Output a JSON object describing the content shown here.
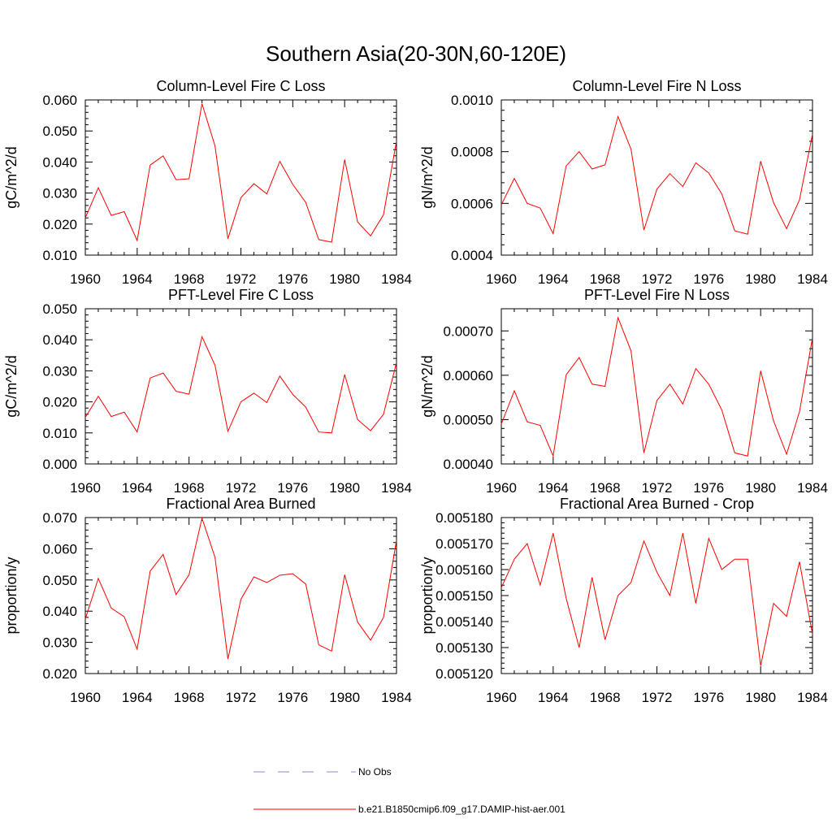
{
  "title": "Southern Asia(20-30N,60-120E)",
  "colors": {
    "series": "#ff0000",
    "obs": "#8a8ac8",
    "axis": "#000000"
  },
  "legend": {
    "obs_label": "No Obs",
    "model_label": "b.e21.B1850cmip6.f09_g17.DAMIP-hist-aer.001"
  },
  "chart_data": [
    {
      "type": "line",
      "title": "Column-Level Fire C Loss",
      "ylabel": "gC/m^2/d",
      "xlim": [
        1960,
        1984
      ],
      "ylim": [
        0.01,
        0.06
      ],
      "xticks": [
        1960,
        1964,
        1968,
        1972,
        1976,
        1980,
        1984
      ],
      "xtick_labels": [
        "1960",
        "1964",
        "1968",
        "1972",
        "1976",
        "1980",
        "1984"
      ],
      "yticks": [
        0.01,
        0.02,
        0.03,
        0.04,
        0.05,
        0.06
      ],
      "ytick_labels": [
        "0.010",
        "0.020",
        "0.030",
        "0.040",
        "0.050",
        "0.060"
      ],
      "x": [
        1960,
        1961,
        1962,
        1963,
        1964,
        1965,
        1966,
        1967,
        1968,
        1969,
        1970,
        1971,
        1972,
        1973,
        1974,
        1975,
        1976,
        1977,
        1978,
        1979,
        1980,
        1981,
        1982,
        1983,
        1984
      ],
      "y": [
        0.022,
        0.0317,
        0.0228,
        0.024,
        0.0147,
        0.039,
        0.042,
        0.0343,
        0.0346,
        0.0588,
        0.0452,
        0.0153,
        0.0285,
        0.033,
        0.0297,
        0.0402,
        0.0328,
        0.027,
        0.015,
        0.0142,
        0.0408,
        0.0207,
        0.0162,
        0.023,
        0.0468
      ]
    },
    {
      "type": "line",
      "title": "Column-Level Fire N Loss",
      "ylabel": "gN/m^2/d",
      "xlim": [
        1960,
        1984
      ],
      "ylim": [
        0.0004,
        0.001
      ],
      "xticks": [
        1960,
        1964,
        1968,
        1972,
        1976,
        1980,
        1984
      ],
      "xtick_labels": [
        "1960",
        "1964",
        "1968",
        "1972",
        "1976",
        "1980",
        "1984"
      ],
      "yticks": [
        0.0004,
        0.0006,
        0.0008,
        0.001
      ],
      "ytick_labels": [
        "0.0004",
        "0.0006",
        "0.0008",
        "0.0010"
      ],
      "x": [
        1960,
        1961,
        1962,
        1963,
        1964,
        1965,
        1966,
        1967,
        1968,
        1969,
        1970,
        1971,
        1972,
        1973,
        1974,
        1975,
        1976,
        1977,
        1978,
        1979,
        1980,
        1981,
        1982,
        1983,
        1984
      ],
      "y": [
        0.000594,
        0.000697,
        0.0006,
        0.000582,
        0.000483,
        0.000745,
        0.0008,
        0.000733,
        0.000749,
        0.000936,
        0.00081,
        0.000497,
        0.000655,
        0.000715,
        0.000665,
        0.000757,
        0.000718,
        0.000637,
        0.000494,
        0.000481,
        0.000763,
        0.000603,
        0.000502,
        0.000614,
        0.000868
      ]
    },
    {
      "type": "line",
      "title": "PFT-Level Fire C Loss",
      "ylabel": "gC/m^2/d",
      "xlim": [
        1960,
        1984
      ],
      "ylim": [
        0.0,
        0.05
      ],
      "xticks": [
        1960,
        1964,
        1968,
        1972,
        1976,
        1980,
        1984
      ],
      "xtick_labels": [
        "1960",
        "1964",
        "1968",
        "1972",
        "1976",
        "1980",
        "1984"
      ],
      "yticks": [
        0.0,
        0.01,
        0.02,
        0.03,
        0.04,
        0.05
      ],
      "ytick_labels": [
        "0.000",
        "0.010",
        "0.020",
        "0.030",
        "0.040",
        "0.050"
      ],
      "x": [
        1960,
        1961,
        1962,
        1963,
        1964,
        1965,
        1966,
        1967,
        1968,
        1969,
        1970,
        1971,
        1972,
        1973,
        1974,
        1975,
        1976,
        1977,
        1978,
        1979,
        1980,
        1981,
        1982,
        1983,
        1984
      ],
      "y": [
        0.015,
        0.0218,
        0.0153,
        0.0167,
        0.0103,
        0.0277,
        0.0293,
        0.0234,
        0.0225,
        0.041,
        0.0318,
        0.0105,
        0.02,
        0.0228,
        0.0198,
        0.0283,
        0.0224,
        0.0183,
        0.0103,
        0.01,
        0.0288,
        0.0143,
        0.0107,
        0.016,
        0.0327
      ]
    },
    {
      "type": "line",
      "title": "PFT-Level Fire N Loss",
      "ylabel": "gN/m^2/d",
      "xlim": [
        1960,
        1984
      ],
      "ylim": [
        0.0004,
        0.00075
      ],
      "xticks": [
        1960,
        1964,
        1968,
        1972,
        1976,
        1980,
        1984
      ],
      "xtick_labels": [
        "1960",
        "1964",
        "1968",
        "1972",
        "1976",
        "1980",
        "1984"
      ],
      "yticks": [
        0.0004,
        0.0005,
        0.0006,
        0.0007
      ],
      "ytick_labels": [
        "0.00040",
        "0.00050",
        "0.00060",
        "0.00070"
      ],
      "x": [
        1960,
        1961,
        1962,
        1963,
        1964,
        1965,
        1966,
        1967,
        1968,
        1969,
        1970,
        1971,
        1972,
        1973,
        1974,
        1975,
        1976,
        1977,
        1978,
        1979,
        1980,
        1981,
        1982,
        1983,
        1984
      ],
      "y": [
        0.00049,
        0.000565,
        0.000495,
        0.000487,
        0.000418,
        0.000601,
        0.00064,
        0.00058,
        0.000575,
        0.00073,
        0.000655,
        0.000425,
        0.000543,
        0.00058,
        0.000535,
        0.000615,
        0.00058,
        0.000522,
        0.000425,
        0.000418,
        0.00061,
        0.000497,
        0.000422,
        0.000518,
        0.000685
      ]
    },
    {
      "type": "line",
      "title": "Fractional Area Burned",
      "ylabel": "proportion/y",
      "xlim": [
        1960,
        1984
      ],
      "ylim": [
        0.02,
        0.07
      ],
      "xticks": [
        1960,
        1964,
        1968,
        1972,
        1976,
        1980,
        1984
      ],
      "xtick_labels": [
        "1960",
        "1964",
        "1968",
        "1972",
        "1976",
        "1980",
        "1984"
      ],
      "yticks": [
        0.02,
        0.03,
        0.04,
        0.05,
        0.06,
        0.07
      ],
      "ytick_labels": [
        "0.020",
        "0.030",
        "0.040",
        "0.050",
        "0.060",
        "0.070"
      ],
      "x": [
        1960,
        1961,
        1962,
        1963,
        1964,
        1965,
        1966,
        1967,
        1968,
        1969,
        1970,
        1971,
        1972,
        1973,
        1974,
        1975,
        1976,
        1977,
        1978,
        1979,
        1980,
        1981,
        1982,
        1983,
        1984
      ],
      "y": [
        0.0375,
        0.0505,
        0.041,
        0.0382,
        0.0278,
        0.0528,
        0.0582,
        0.0453,
        0.0517,
        0.0698,
        0.0573,
        0.0247,
        0.0438,
        0.051,
        0.0492,
        0.0515,
        0.052,
        0.0487,
        0.0292,
        0.0272,
        0.0517,
        0.0365,
        0.0307,
        0.038,
        0.0627
      ]
    },
    {
      "type": "line",
      "title": "Fractional Area Burned - Crop",
      "ylabel": "proportion/y",
      "xlim": [
        1960,
        1984
      ],
      "ylim": [
        0.00512,
        0.00518
      ],
      "xticks": [
        1960,
        1964,
        1968,
        1972,
        1976,
        1980,
        1984
      ],
      "xtick_labels": [
        "1960",
        "1964",
        "1968",
        "1972",
        "1976",
        "1980",
        "1984"
      ],
      "yticks": [
        0.00512,
        0.00513,
        0.00514,
        0.00515,
        0.00516,
        0.00517,
        0.00518
      ],
      "ytick_labels": [
        "0.005120",
        "0.005130",
        "0.005140",
        "0.005150",
        "0.005160",
        "0.005170",
        "0.005180"
      ],
      "x": [
        1960,
        1961,
        1962,
        1963,
        1964,
        1965,
        1966,
        1967,
        1968,
        1969,
        1970,
        1971,
        1972,
        1973,
        1974,
        1975,
        1976,
        1977,
        1978,
        1979,
        1980,
        1981,
        1982,
        1983,
        1984
      ],
      "y": [
        0.005153,
        0.005164,
        0.00517,
        0.005154,
        0.005174,
        0.005149,
        0.00513,
        0.005157,
        0.005133,
        0.00515,
        0.005155,
        0.005171,
        0.005159,
        0.00515,
        0.005174,
        0.005147,
        0.005172,
        0.00516,
        0.005164,
        0.005164,
        0.005123,
        0.005147,
        0.005142,
        0.005163,
        0.005135
      ]
    }
  ]
}
